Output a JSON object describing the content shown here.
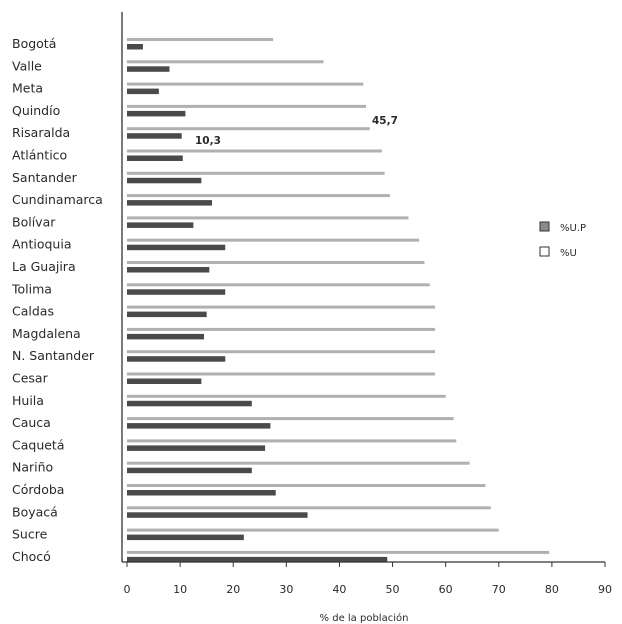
{
  "chart_data": {
    "type": "bar",
    "orientation": "horizontal",
    "xlabel": "% de la población",
    "ylabel": "",
    "xlim": [
      0,
      90
    ],
    "xticks": [
      0,
      10,
      20,
      30,
      40,
      50,
      60,
      70,
      80,
      90
    ],
    "categories": [
      "Bogotá",
      "Valle",
      "Meta",
      "Quindío",
      "Risaralda",
      "Atlántico",
      "Santander",
      "Cundinamarca",
      "Bolívar",
      "Antioquia",
      "La Guajira",
      "Tolima",
      "Caldas",
      "Magdalena",
      "N. Santander",
      "Cesar",
      "Huila",
      "Cauca",
      "Caquetá",
      "Nariño",
      "Córdoba",
      "Boyacá",
      "Sucre",
      "Chocó"
    ],
    "series": [
      {
        "name": "%U",
        "color": "#b0b0b0",
        "values": [
          27.5,
          37,
          44.5,
          45,
          45.7,
          48,
          48.5,
          49.5,
          53,
          55,
          56,
          57,
          58,
          58,
          58,
          58,
          60,
          61.5,
          62,
          64.5,
          67.5,
          68.5,
          70,
          79.5
        ]
      },
      {
        "name": "%U.P",
        "color": "#4a4a4a",
        "values": [
          3,
          8,
          6,
          11,
          10.3,
          10.5,
          14,
          16,
          12.5,
          18.5,
          15.5,
          18.5,
          15,
          14.5,
          18.5,
          14,
          23.5,
          27,
          26,
          23.5,
          28,
          34,
          22,
          49
        ]
      }
    ],
    "annotations": [
      "45,7",
      "10,3"
    ],
    "legend": [
      "%U.P",
      "%U"
    ],
    "legend_position": "right",
    "grid": false
  }
}
